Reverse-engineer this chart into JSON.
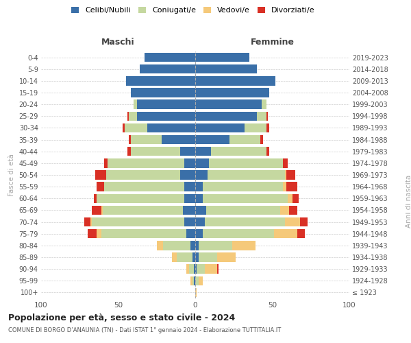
{
  "age_groups": [
    "100+",
    "95-99",
    "90-94",
    "85-89",
    "80-84",
    "75-79",
    "70-74",
    "65-69",
    "60-64",
    "55-59",
    "50-54",
    "45-49",
    "40-44",
    "35-39",
    "30-34",
    "25-29",
    "20-24",
    "15-19",
    "10-14",
    "5-9",
    "0-4"
  ],
  "birth_years": [
    "≤ 1923",
    "1924-1928",
    "1929-1933",
    "1934-1938",
    "1939-1943",
    "1944-1948",
    "1949-1953",
    "1954-1958",
    "1959-1963",
    "1964-1968",
    "1969-1973",
    "1974-1978",
    "1979-1983",
    "1984-1988",
    "1989-1993",
    "1994-1998",
    "1999-2003",
    "2004-2008",
    "2009-2013",
    "2014-2018",
    "2019-2023"
  ],
  "male": {
    "celibi": [
      0,
      1,
      1,
      2,
      3,
      6,
      7,
      8,
      7,
      7,
      10,
      7,
      10,
      22,
      31,
      38,
      38,
      42,
      45,
      36,
      33
    ],
    "coniugati": [
      0,
      1,
      3,
      10,
      18,
      55,
      60,
      52,
      57,
      52,
      48,
      50,
      32,
      20,
      15,
      5,
      2,
      0,
      0,
      0,
      0
    ],
    "vedovi": [
      0,
      1,
      2,
      3,
      4,
      3,
      1,
      1,
      0,
      0,
      0,
      0,
      0,
      0,
      0,
      0,
      0,
      0,
      0,
      0,
      0
    ],
    "divorziati": [
      0,
      0,
      0,
      0,
      0,
      6,
      4,
      6,
      2,
      5,
      7,
      2,
      2,
      1,
      1,
      1,
      0,
      0,
      0,
      0,
      0
    ]
  },
  "female": {
    "nubili": [
      0,
      0,
      1,
      2,
      2,
      5,
      6,
      7,
      5,
      5,
      8,
      9,
      10,
      22,
      32,
      40,
      43,
      48,
      52,
      40,
      35
    ],
    "coniugate": [
      0,
      2,
      5,
      12,
      22,
      46,
      52,
      48,
      55,
      52,
      50,
      48,
      36,
      20,
      14,
      6,
      3,
      0,
      0,
      0,
      0
    ],
    "vedove": [
      1,
      3,
      8,
      12,
      15,
      15,
      10,
      6,
      3,
      2,
      1,
      0,
      0,
      0,
      0,
      0,
      0,
      0,
      0,
      0,
      0
    ],
    "divorziate": [
      0,
      0,
      1,
      0,
      0,
      5,
      5,
      5,
      4,
      7,
      6,
      3,
      2,
      2,
      2,
      1,
      0,
      0,
      0,
      0,
      0
    ]
  },
  "colors": {
    "celibi": "#3a6fa8",
    "coniugati": "#c5d8a0",
    "vedovi": "#f5c97a",
    "divorziati": "#d93025"
  },
  "xlim": 100,
  "title": "Popolazione per età, sesso e stato civile - 2024",
  "subtitle": "COMUNE DI BORGO D’ANAUNIA (TN) - Dati ISTAT 1° gennaio 2024 - Elaborazione TUTTITALIA.IT",
  "ylabel_left": "Fasce di età",
  "ylabel_right": "Anni di nascita",
  "xlabel_left": "Maschi",
  "xlabel_right": "Femmine",
  "bg_color": "#ffffff",
  "grid_color": "#cccccc"
}
